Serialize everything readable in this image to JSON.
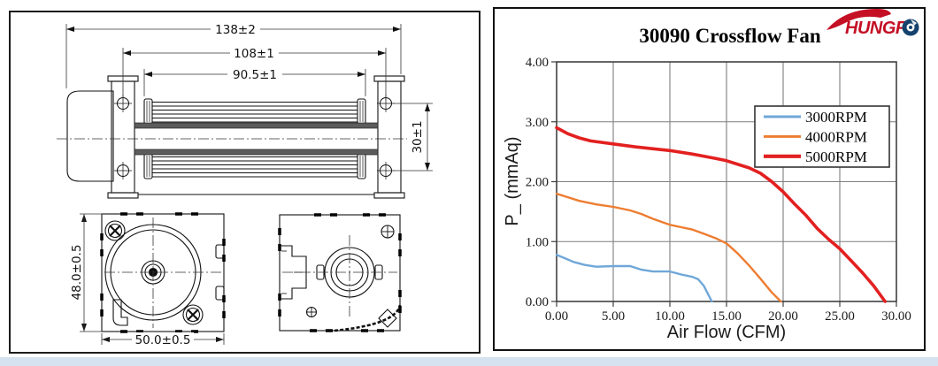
{
  "page": {
    "background": "#ffffff",
    "bottom_strip_color": "#d6e2f0"
  },
  "logo": {
    "brand": "HUNGFO",
    "text_red": "HUNGF",
    "letter_o": "O",
    "red": "#c40f24",
    "blue": "#15426d"
  },
  "drawing": {
    "dimensions": {
      "overall_length": "138±2",
      "hole_spacing": "108±1",
      "impeller_length": "90.5±1",
      "hole_height": "30±1",
      "frame_height": "48.0±0.5",
      "frame_width": "50.0±0.5"
    }
  },
  "chart_data": {
    "type": "line",
    "title": "30090 Crossflow Fan",
    "xlabel": "Air Flow (CFM)",
    "ylabel": "P_ (mmAq)",
    "xlim": [
      0,
      30
    ],
    "ylim": [
      0,
      4
    ],
    "xticks": [
      "0.00",
      "5.00",
      "10.00",
      "15.00",
      "20.00",
      "25.00",
      "30.00"
    ],
    "yticks": [
      "0.00",
      "1.00",
      "2.00",
      "3.00",
      "4.00"
    ],
    "grid": true,
    "grid_color": "#7f7f7f",
    "axis_color": "#404040",
    "legend_position": "top-right",
    "series": [
      {
        "name": "3000RPM",
        "color": "#6fa7d8",
        "width": 2.4,
        "points": [
          [
            0,
            0.78
          ],
          [
            1.5,
            0.66
          ],
          [
            2.5,
            0.61
          ],
          [
            3.5,
            0.58
          ],
          [
            5,
            0.59
          ],
          [
            6.5,
            0.59
          ],
          [
            7.5,
            0.53
          ],
          [
            8.5,
            0.5
          ],
          [
            10,
            0.5
          ],
          [
            11,
            0.45
          ],
          [
            12,
            0.41
          ],
          [
            12.5,
            0.37
          ],
          [
            13,
            0.26
          ],
          [
            13.7,
            0
          ]
        ]
      },
      {
        "name": "4000RPM",
        "color": "#ed7d31",
        "width": 2.4,
        "points": [
          [
            0,
            1.8
          ],
          [
            2,
            1.68
          ],
          [
            3.5,
            1.62
          ],
          [
            5,
            1.58
          ],
          [
            6.5,
            1.52
          ],
          [
            7.5,
            1.46
          ],
          [
            8.5,
            1.38
          ],
          [
            10,
            1.28
          ],
          [
            11,
            1.24
          ],
          [
            12,
            1.2
          ],
          [
            13,
            1.13
          ],
          [
            14,
            1.06
          ],
          [
            15,
            0.97
          ],
          [
            16,
            0.8
          ],
          [
            17,
            0.6
          ],
          [
            18,
            0.38
          ],
          [
            19,
            0.15
          ],
          [
            19.8,
            0
          ]
        ]
      },
      {
        "name": "5000RPM",
        "color": "#e32020",
        "width": 3.6,
        "points": [
          [
            0,
            2.9
          ],
          [
            1,
            2.8
          ],
          [
            2,
            2.73
          ],
          [
            3,
            2.68
          ],
          [
            5,
            2.63
          ],
          [
            7,
            2.58
          ],
          [
            10,
            2.52
          ],
          [
            12,
            2.46
          ],
          [
            14,
            2.39
          ],
          [
            15,
            2.35
          ],
          [
            16,
            2.29
          ],
          [
            17,
            2.23
          ],
          [
            18,
            2.14
          ],
          [
            19,
            2.0
          ],
          [
            20,
            1.83
          ],
          [
            21,
            1.63
          ],
          [
            22,
            1.44
          ],
          [
            23,
            1.22
          ],
          [
            24,
            1.04
          ],
          [
            25,
            0.88
          ],
          [
            26,
            0.68
          ],
          [
            27,
            0.48
          ],
          [
            28,
            0.26
          ],
          [
            29,
            0
          ]
        ]
      }
    ]
  }
}
